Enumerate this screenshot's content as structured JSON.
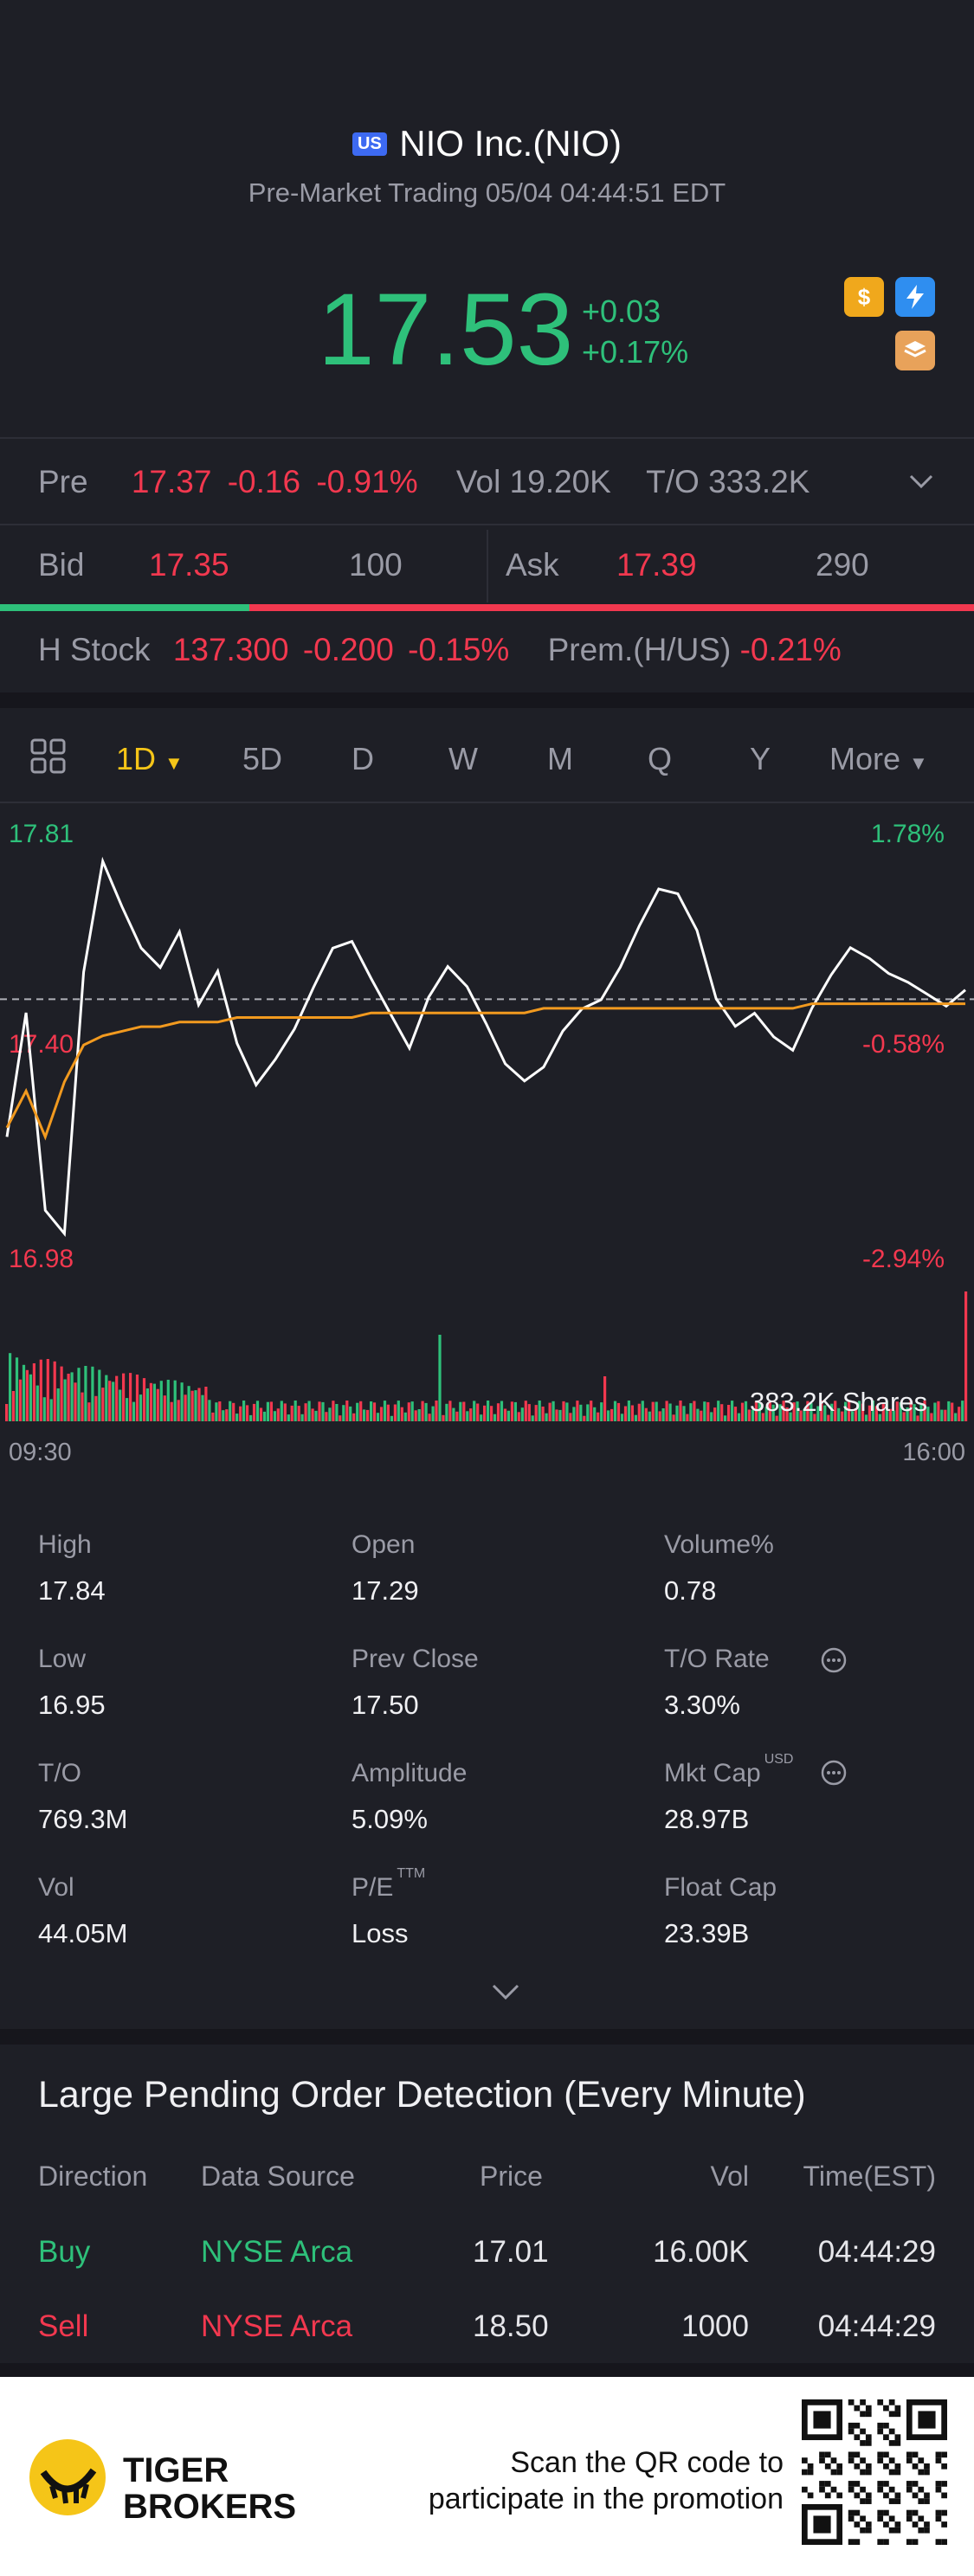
{
  "header": {
    "market_badge": "US",
    "title": "NIO Inc.(NIO)",
    "subtitle": "Pre-Market Trading 05/04 04:44:51 EDT"
  },
  "quote": {
    "price": "17.53",
    "change": "+0.03",
    "change_pct": "+0.17%",
    "icons": [
      "dollar-icon",
      "lightning-icon",
      "stack-icon"
    ]
  },
  "pre": {
    "label": "Pre",
    "price": "17.37",
    "change": "-0.16",
    "change_pct": "-0.91%",
    "vol_label": "Vol",
    "vol": "19.20K",
    "to_label": "T/O",
    "to": "333.2K"
  },
  "bidask": {
    "bid_label": "Bid",
    "bid_price": "17.35",
    "bid_size": "100",
    "ask_label": "Ask",
    "ask_price": "17.39",
    "ask_size": "290",
    "bid_ratio": 0.256
  },
  "hstock": {
    "label": "H Stock",
    "price": "137.300",
    "change": "-0.200",
    "change_pct": "-0.15%",
    "prem_label": "Prem.(H/US)",
    "prem": "-0.21%"
  },
  "tabs": [
    "1D",
    "5D",
    "D",
    "W",
    "M",
    "Q",
    "Y",
    "More"
  ],
  "active_tab": "1D",
  "chart": {
    "high_label": "17.81",
    "high_pct": "1.78%",
    "mid_label": "17.40",
    "mid_pct": "-0.58%",
    "low_label": "16.98",
    "low_pct": "-2.94%",
    "volume_label": "383.2K Shares",
    "time_start": "09:30",
    "time_end": "16:00"
  },
  "chart_data": {
    "type": "line",
    "x_range": [
      "09:30",
      "16:00"
    ],
    "ylim": [
      16.98,
      17.81
    ],
    "prev_close": 17.5,
    "series": [
      {
        "values": [
          17.2,
          17.48,
          17.05,
          16.99,
          17.55,
          17.79,
          17.7,
          17.62,
          17.58,
          17.65,
          17.48,
          17.55,
          17.4,
          17.32,
          17.38,
          17.44,
          17.52,
          17.6,
          17.62,
          17.55,
          17.48,
          17.4,
          17.5,
          17.56,
          17.52,
          17.45,
          17.37,
          17.33,
          17.35,
          17.42,
          17.47,
          17.5,
          17.58,
          17.67,
          17.74,
          17.72,
          17.64,
          17.5,
          17.45,
          17.48,
          17.42,
          17.38,
          17.47,
          17.55,
          17.62,
          17.6,
          17.56,
          17.53,
          17.5,
          17.48,
          17.52
        ]
      },
      {
        "values": [
          17.22,
          17.3,
          17.2,
          17.32,
          17.4,
          17.42,
          17.43,
          17.44,
          17.44,
          17.45,
          17.45,
          17.45,
          17.46,
          17.46,
          17.46,
          17.46,
          17.46,
          17.46,
          17.46,
          17.47,
          17.47,
          17.47,
          17.47,
          17.47,
          17.47,
          17.47,
          17.47,
          17.47,
          17.48,
          17.48,
          17.48,
          17.48,
          17.48,
          17.48,
          17.48,
          17.48,
          17.48,
          17.48,
          17.48,
          17.48,
          17.48,
          17.48,
          17.49,
          17.49,
          17.49,
          17.49,
          17.49,
          17.49,
          17.49,
          17.49,
          17.49
        ]
      }
    ]
  },
  "stats": [
    {
      "label": "High",
      "value": "17.84"
    },
    {
      "label": "Open",
      "value": "17.29"
    },
    {
      "label": "Volume%",
      "value": "0.78"
    },
    {
      "label": "Low",
      "value": "16.95"
    },
    {
      "label": "Prev Close",
      "value": "17.50"
    },
    {
      "label": "T/O Rate",
      "value": "3.30%"
    },
    {
      "label": "T/O",
      "value": "769.3M"
    },
    {
      "label": "Amplitude",
      "value": "5.09%"
    },
    {
      "label": "Mkt Cap",
      "value": "28.97B",
      "sup": "USD"
    },
    {
      "label": "Vol",
      "value": "44.05M"
    },
    {
      "label": "P/E",
      "value": "Loss",
      "sup": "TTM"
    },
    {
      "label": "Float Cap",
      "value": "23.39B"
    }
  ],
  "orders": {
    "title": "Large Pending Order Detection (Every Minute)",
    "headers": [
      "Direction",
      "Data Source",
      "Price",
      "Vol",
      "Time(EST)"
    ],
    "rows": [
      {
        "direction": "Buy",
        "source": "NYSE Arca",
        "price": "17.01",
        "vol": "16.00K",
        "time": "04:44:29"
      },
      {
        "direction": "Sell",
        "source": "NYSE Arca",
        "price": "18.50",
        "vol": "1000",
        "time": "04:44:29"
      }
    ]
  },
  "footer": {
    "brand_line1": "TIGER",
    "brand_line2": "BROKERS",
    "cta_line1": "Scan the QR code to",
    "cta_line2": "participate in the promotion"
  },
  "colors": {
    "up": "#2ec07a",
    "down": "#f2384f",
    "accent": "#f5c518",
    "background": "#1e1f26"
  }
}
